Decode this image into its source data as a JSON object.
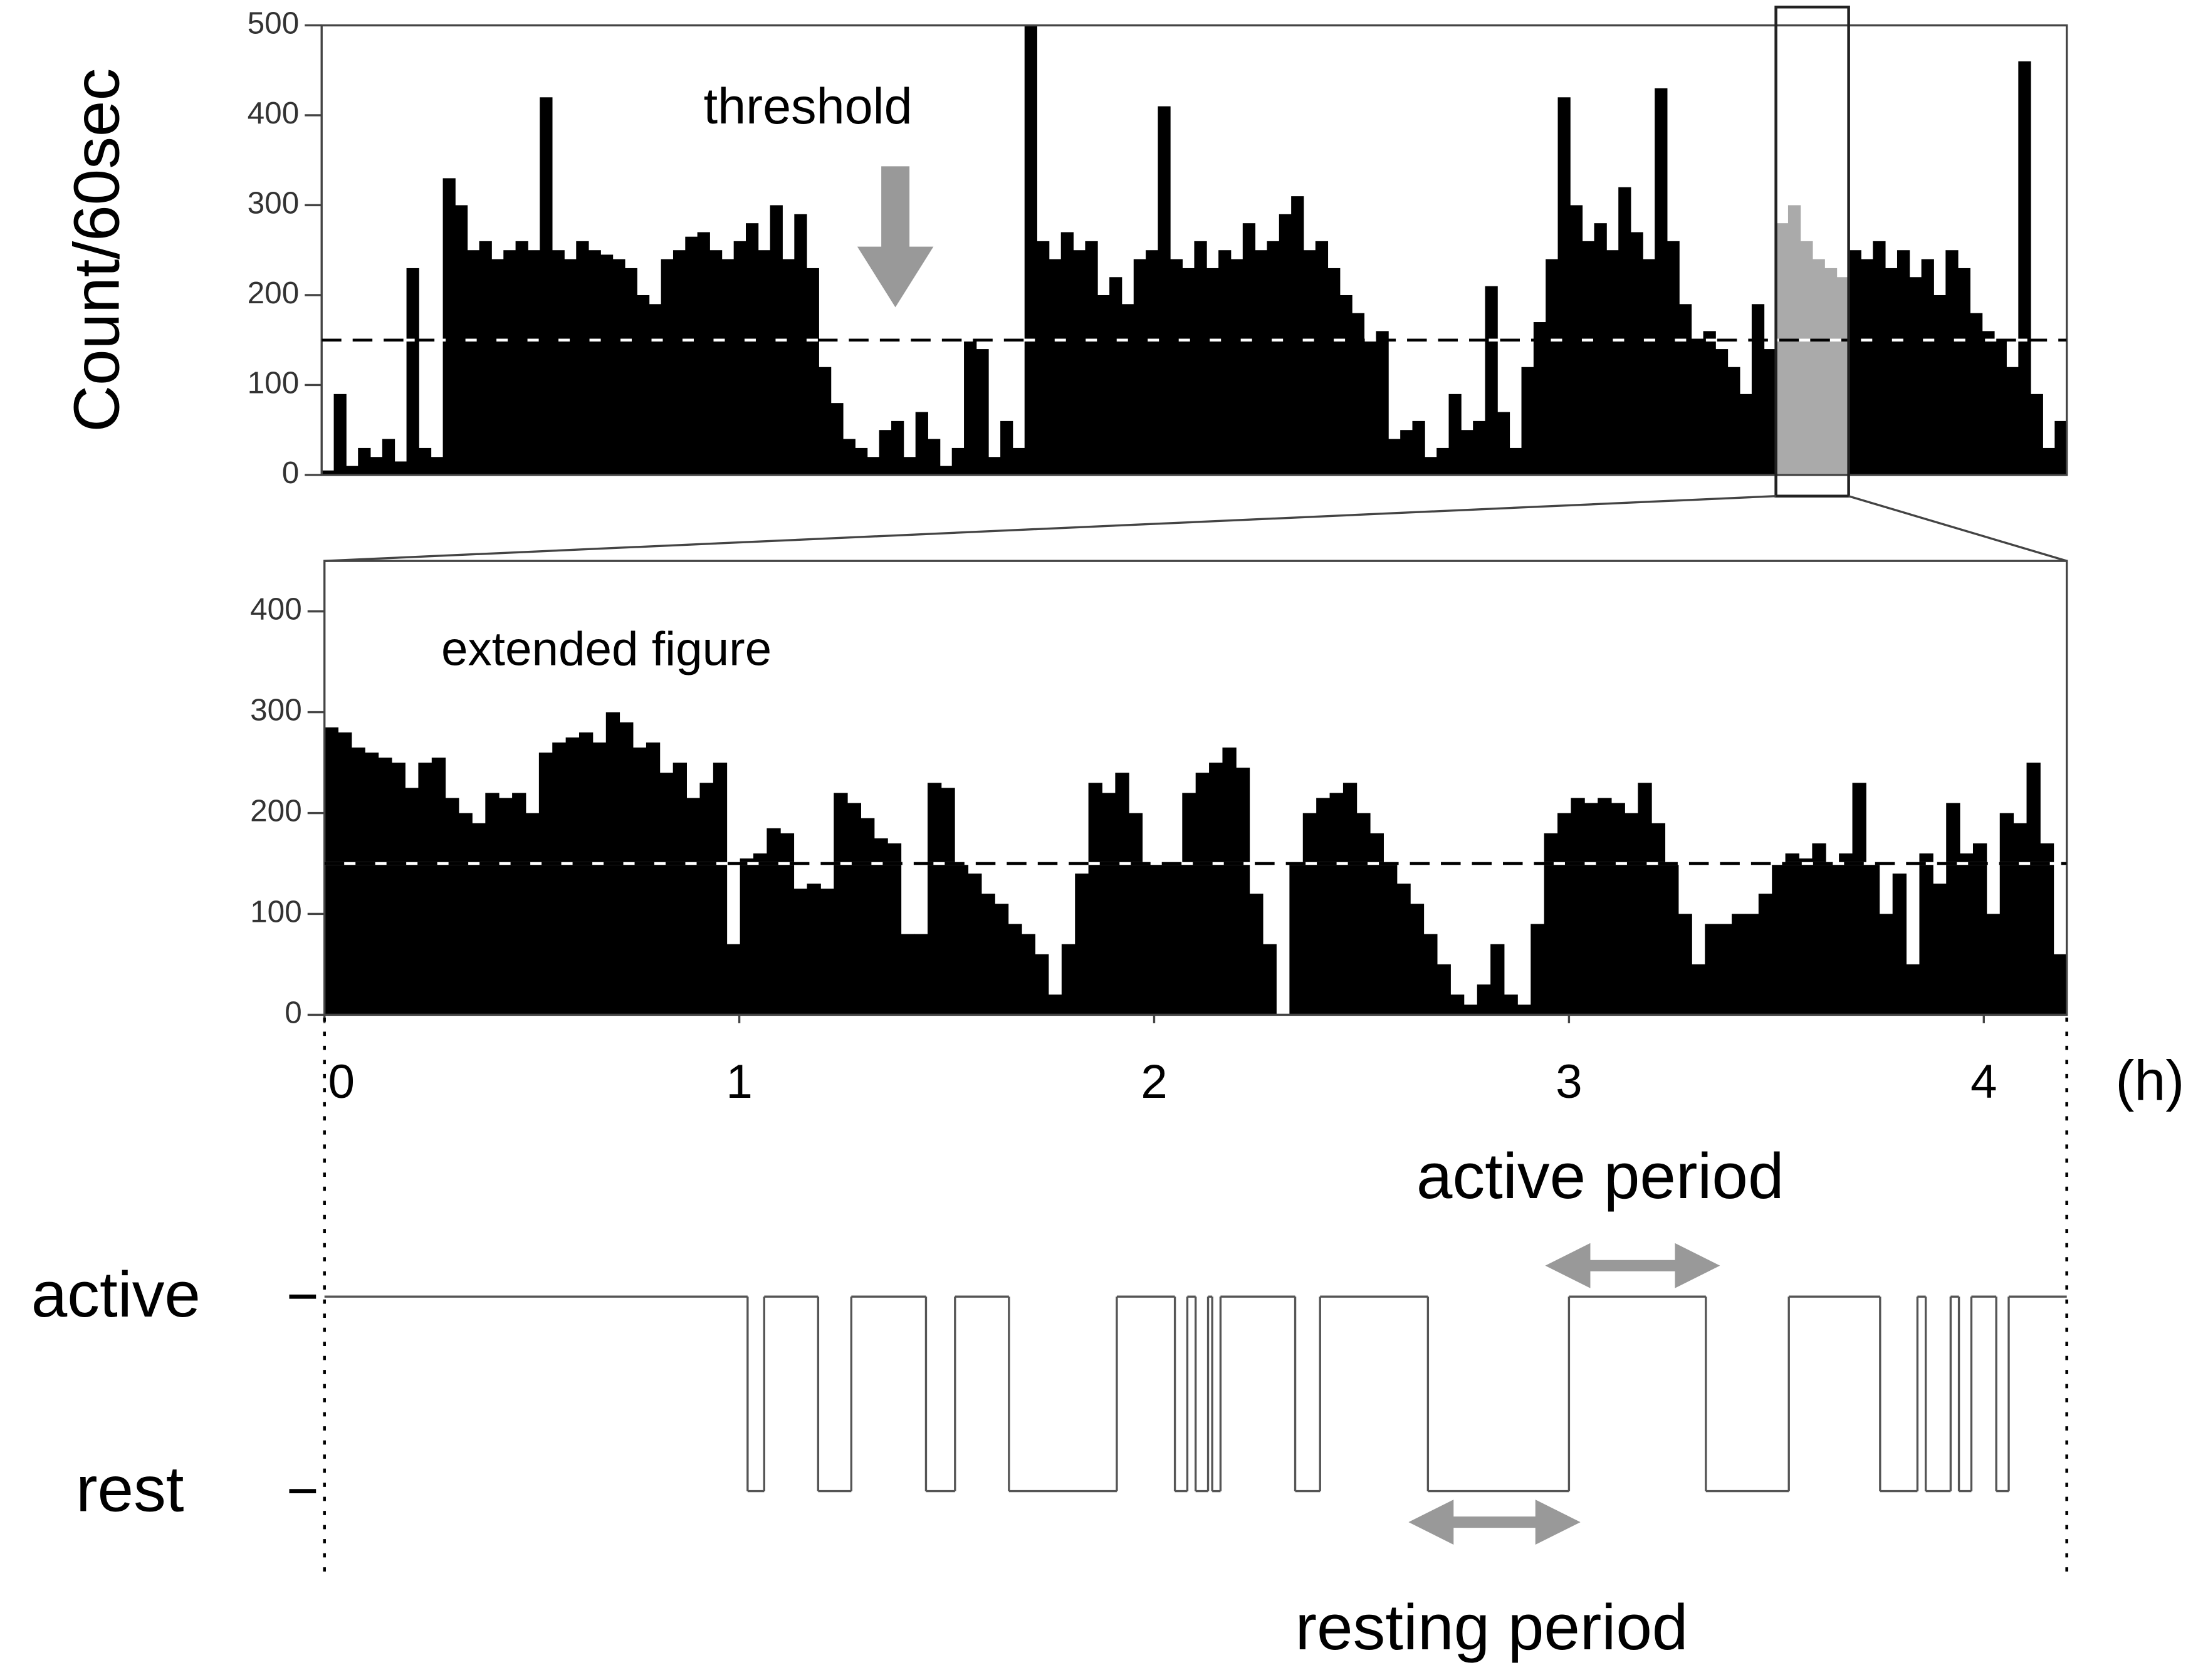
{
  "chart_data": [
    {
      "type": "bar",
      "ylabel": "Count/60sec",
      "annotation": "threshold",
      "threshold": 150,
      "color": "#000000",
      "highlight": {
        "from": 120,
        "to": 125,
        "color": "#aaaaaa"
      },
      "ylim": [
        0,
        500
      ],
      "yticks": [
        0,
        100,
        200,
        300,
        400,
        500
      ],
      "values": [
        5,
        90,
        10,
        30,
        20,
        40,
        15,
        230,
        30,
        20,
        330,
        300,
        250,
        260,
        240,
        250,
        260,
        250,
        420,
        250,
        240,
        260,
        250,
        245,
        240,
        230,
        200,
        190,
        240,
        250,
        265,
        270,
        250,
        240,
        260,
        280,
        250,
        300,
        240,
        290,
        230,
        120,
        80,
        40,
        30,
        20,
        50,
        60,
        20,
        70,
        40,
        10,
        30,
        150,
        140,
        20,
        60,
        30,
        500,
        260,
        240,
        270,
        250,
        260,
        200,
        220,
        190,
        240,
        250,
        410,
        240,
        230,
        260,
        230,
        250,
        240,
        280,
        250,
        260,
        290,
        310,
        250,
        260,
        230,
        200,
        180,
        150,
        160,
        40,
        50,
        60,
        20,
        30,
        90,
        50,
        60,
        210,
        70,
        30,
        120,
        170,
        240,
        420,
        300,
        260,
        280,
        250,
        320,
        270,
        240,
        430,
        260,
        190,
        150,
        160,
        140,
        120,
        90,
        190,
        140,
        280,
        300,
        260,
        240,
        230,
        220,
        250,
        240,
        260,
        230,
        250,
        220,
        240,
        200,
        250,
        230,
        180,
        160,
        150,
        120,
        460,
        90,
        30,
        60
      ]
    },
    {
      "type": "bar",
      "annotation": "extended figure",
      "threshold": 150,
      "color": "#000000",
      "ylim": [
        0,
        450
      ],
      "yticks": [
        0,
        100,
        200,
        300,
        400
      ],
      "xlim": [
        0,
        4.2
      ],
      "xticks": [
        0,
        1,
        2,
        3,
        4
      ],
      "xlabel": "(h)",
      "values": [
        285,
        280,
        265,
        260,
        255,
        250,
        225,
        250,
        255,
        215,
        200,
        190,
        220,
        215,
        220,
        200,
        260,
        270,
        275,
        280,
        270,
        300,
        290,
        265,
        270,
        240,
        250,
        215,
        230,
        250,
        70,
        155,
        160,
        185,
        180,
        125,
        130,
        125,
        220,
        210,
        195,
        175,
        170,
        80,
        80,
        230,
        225,
        150,
        140,
        120,
        110,
        90,
        80,
        60,
        20,
        70,
        140,
        230,
        220,
        240,
        200,
        150,
        150,
        150,
        220,
        240,
        250,
        265,
        245,
        120,
        70,
        0,
        150,
        200,
        215,
        220,
        230,
        200,
        180,
        150,
        130,
        110,
        80,
        50,
        20,
        10,
        30,
        70,
        20,
        10,
        90,
        180,
        200,
        215,
        210,
        215,
        210,
        200,
        230,
        190,
        150,
        100,
        50,
        90,
        90,
        100,
        100,
        120,
        150,
        160,
        155,
        170,
        150,
        160,
        230,
        150,
        100,
        140,
        50,
        160,
        130,
        210,
        160,
        170,
        100,
        200,
        190,
        250,
        170,
        60
      ]
    },
    {
      "type": "step",
      "xlim": [
        0,
        4.2
      ],
      "color": "#555555",
      "yticks": [
        {
          "value": 1,
          "label": "active"
        },
        {
          "value": 0,
          "label": "rest"
        }
      ],
      "annotations": [
        "active period",
        "resting period"
      ],
      "x": [
        0,
        1.02,
        1.06,
        1.19,
        1.27,
        1.45,
        1.52,
        1.65,
        1.91,
        2.05,
        2.08,
        2.1,
        2.13,
        2.14,
        2.16,
        2.34,
        2.4,
        2.66,
        3.0,
        3.33,
        3.53,
        3.75,
        3.84,
        3.86,
        3.92,
        3.94,
        3.97,
        4.03,
        4.06
      ],
      "values": [
        1,
        0,
        1,
        0,
        1,
        0,
        1,
        0,
        1,
        0,
        1,
        0,
        1,
        0,
        1,
        0,
        1,
        0,
        1,
        0,
        1,
        0,
        1,
        0,
        1,
        0,
        1,
        0,
        1
      ]
    }
  ]
}
